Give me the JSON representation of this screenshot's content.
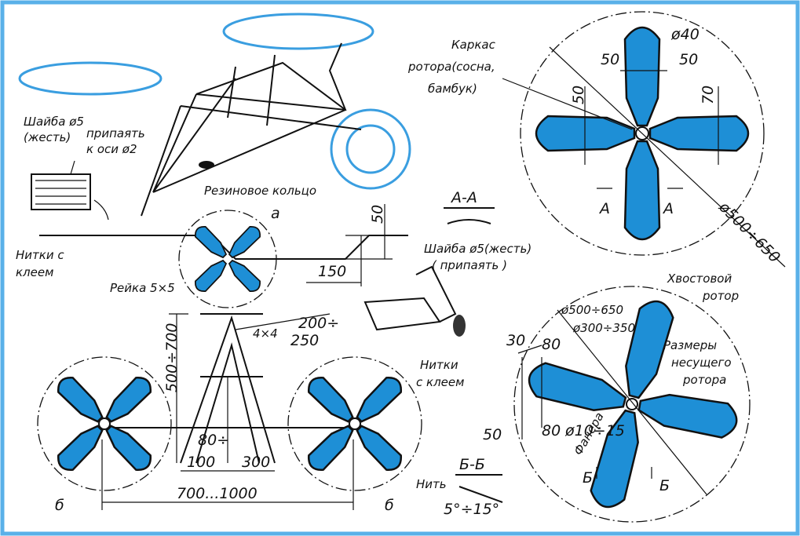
{
  "frame_view": {
    "washer_note": [
      "Шайба ø5",
      "(жесть)",
      "припаять",
      "к оси ø2"
    ],
    "rubber_ring": "Резиновое кольцо",
    "threads_note": [
      "Нитки с",
      "клеем"
    ],
    "rail": "Рейка 5×5",
    "hub_mark": "а",
    "dim_height": "50",
    "dim_offset": "150"
  },
  "section_aa": {
    "title": "А-А",
    "washer_note": [
      "Шайба ø5(жесть)",
      "( припаять )"
    ],
    "threads_note": [
      "Нитки",
      "с клеем"
    ]
  },
  "main_rotor": {
    "frame_label": [
      "Каркас",
      "ротора(сосна,",
      "бамбук)"
    ],
    "hub_dia": "ø40",
    "dims": [
      "50",
      "50",
      "50",
      "70"
    ],
    "diameter": "ø500÷650",
    "section_marks": [
      "А",
      "А"
    ]
  },
  "side_view": {
    "dim_rail": "4×4",
    "dim_span": [
      "200÷",
      "250"
    ],
    "dim_height": "500÷700",
    "dim_lower": [
      "80÷",
      "100"
    ],
    "dim_mid": "300",
    "dim_total": "700...1000",
    "view_marks": [
      "б",
      "б"
    ]
  },
  "tail_rotor": {
    "title": [
      "Хвостовой",
      "ротор"
    ],
    "dia_outer": "ø500÷650",
    "dia_inner": "ø300÷350",
    "main_note": [
      "Размеры",
      "несущего",
      "ротора"
    ],
    "hub": "ø10÷15",
    "material": "Фанера",
    "dims": [
      "30",
      "80",
      "50",
      "80"
    ],
    "section_marks": [
      "Б",
      "Б"
    ]
  },
  "section_bb": {
    "title": "Б-Б",
    "thread": "Нить",
    "angle": "5°÷15°"
  }
}
